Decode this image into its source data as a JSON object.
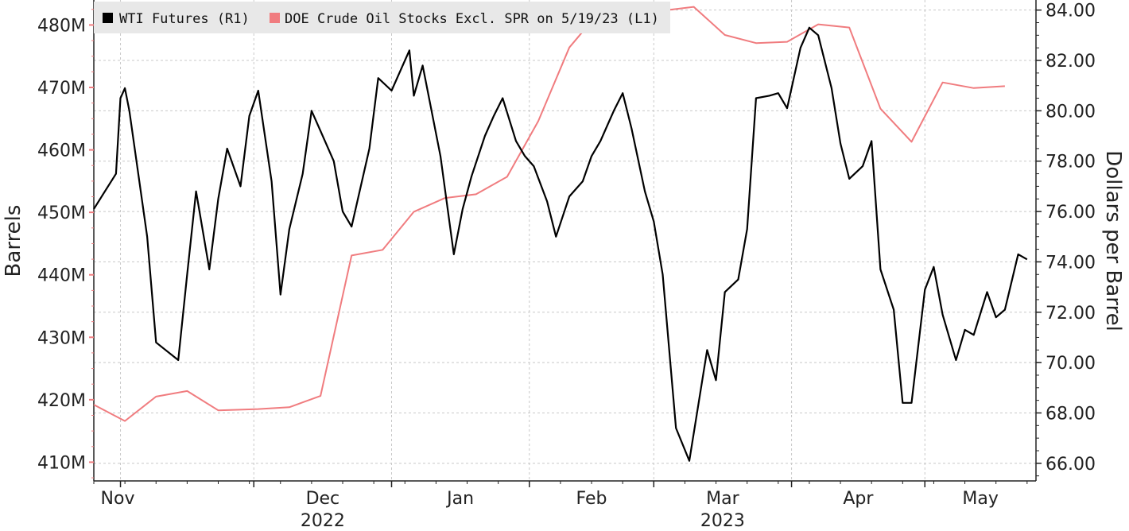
{
  "chart_data": {
    "type": "line",
    "legend_placement": "top-left",
    "grid": true,
    "xlabel": "",
    "ylabel_left": "Barrels",
    "ylabel_right": "Dollars per Barrel",
    "x_range": [
      "2022-10-26",
      "2023-05-26"
    ],
    "x_ticks": [
      {
        "date": "2022-11-01",
        "label": "Nov",
        "year": ""
      },
      {
        "date": "2022-12-01",
        "label": "Dec",
        "year": "2022"
      },
      {
        "date": "2023-01-01",
        "label": "Jan",
        "year": ""
      },
      {
        "date": "2023-02-01",
        "label": "Feb",
        "year": ""
      },
      {
        "date": "2023-03-01",
        "label": "Mar",
        "year": "2023"
      },
      {
        "date": "2023-04-01",
        "label": "Apr",
        "year": ""
      },
      {
        "date": "2023-05-01",
        "label": "May",
        "year": ""
      }
    ],
    "y_left": {
      "unit": "M barrels",
      "range": [
        407,
        484
      ],
      "ticks": [
        410,
        420,
        430,
        440,
        450,
        460,
        470,
        480
      ],
      "tick_labels": [
        "410M",
        "420M",
        "430M",
        "440M",
        "450M",
        "460M",
        "470M",
        "480M"
      ]
    },
    "y_right": {
      "unit": "USD per barrel",
      "range": [
        65.3,
        84.4
      ],
      "ticks": [
        66,
        68,
        70,
        72,
        74,
        76,
        78,
        80,
        82,
        84
      ],
      "tick_labels": [
        "66.00",
        "68.00",
        "70.00",
        "72.00",
        "74.00",
        "76.00",
        "78.00",
        "80.00",
        "82.00",
        "84.00"
      ]
    },
    "series": [
      {
        "name": "WTI Futures (R1)",
        "axis": "right",
        "color": "#000000",
        "x": [
          "2022-10-26",
          "2022-10-31",
          "2022-11-01",
          "2022-11-02",
          "2022-11-03",
          "2022-11-07",
          "2022-11-09",
          "2022-11-14",
          "2022-11-16",
          "2022-11-18",
          "2022-11-21",
          "2022-11-23",
          "2022-11-25",
          "2022-11-28",
          "2022-11-30",
          "2022-12-02",
          "2022-12-05",
          "2022-12-07",
          "2022-12-09",
          "2022-12-12",
          "2022-12-14",
          "2022-12-16",
          "2022-12-19",
          "2022-12-21",
          "2022-12-23",
          "2022-12-27",
          "2022-12-29",
          "2023-01-01",
          "2023-01-03",
          "2023-01-05",
          "2023-01-06",
          "2023-01-08",
          "2023-01-10",
          "2023-01-12",
          "2023-01-15",
          "2023-01-17",
          "2023-01-19",
          "2023-01-22",
          "2023-01-24",
          "2023-01-26",
          "2023-01-29",
          "2023-01-31",
          "2023-02-02",
          "2023-02-05",
          "2023-02-07",
          "2023-02-10",
          "2023-02-13",
          "2023-02-15",
          "2023-02-17",
          "2023-02-20",
          "2023-02-22",
          "2023-02-24",
          "2023-02-27",
          "2023-03-01",
          "2023-03-03",
          "2023-03-06",
          "2023-03-09",
          "2023-03-13",
          "2023-03-15",
          "2023-03-17",
          "2023-03-20",
          "2023-03-22",
          "2023-03-24",
          "2023-03-27",
          "2023-03-29",
          "2023-03-31",
          "2023-04-03",
          "2023-04-05",
          "2023-04-07",
          "2023-04-10",
          "2023-04-12",
          "2023-04-14",
          "2023-04-17",
          "2023-04-19",
          "2023-04-21",
          "2023-04-24",
          "2023-04-26",
          "2023-04-28",
          "2023-05-01",
          "2023-05-03",
          "2023-05-05",
          "2023-05-08",
          "2023-05-10",
          "2023-05-12",
          "2023-05-15",
          "2023-05-17",
          "2023-05-19",
          "2023-05-22",
          "2023-05-24"
        ],
        "values": [
          76.1,
          77.5,
          80.5,
          80.9,
          80.0,
          75.0,
          70.8,
          70.1,
          73.5,
          76.8,
          73.7,
          76.5,
          78.5,
          77.0,
          79.8,
          80.8,
          77.2,
          72.7,
          75.3,
          77.5,
          80.0,
          79.2,
          78.0,
          76.0,
          75.4,
          78.5,
          81.3,
          80.8,
          81.6,
          82.4,
          80.6,
          81.8,
          80.0,
          78.2,
          74.3,
          76.1,
          77.4,
          79.0,
          79.8,
          80.5,
          78.8,
          78.2,
          77.8,
          76.4,
          75.0,
          76.6,
          77.2,
          78.2,
          78.8,
          80.0,
          80.7,
          79.3,
          76.8,
          75.6,
          73.5,
          67.4,
          66.1,
          70.5,
          69.3,
          72.8,
          73.3,
          75.3,
          80.5,
          80.6,
          80.7,
          80.1,
          82.5,
          83.3,
          83.0,
          80.9,
          78.7,
          77.3,
          77.8,
          78.8,
          73.7,
          72.1,
          68.4,
          68.4,
          72.9,
          73.8,
          71.9,
          70.1,
          71.3,
          71.1,
          72.8,
          71.8,
          72.1,
          74.3,
          74.1
        ]
      },
      {
        "name": "DOE Crude Oil Stocks Excl. SPR on 5/19/23 (L1)",
        "axis": "left",
        "color": "#f07c7f",
        "x": [
          "2022-10-26",
          "2022-11-02",
          "2022-11-09",
          "2022-11-16",
          "2022-11-23",
          "2022-12-02",
          "2022-12-09",
          "2022-12-16",
          "2022-12-23",
          "2022-12-30",
          "2023-01-06",
          "2023-01-13",
          "2023-01-20",
          "2023-01-27",
          "2023-02-03",
          "2023-02-10",
          "2023-02-17",
          "2023-02-24",
          "2023-03-03",
          "2023-03-10",
          "2023-03-17",
          "2023-03-24",
          "2023-03-31",
          "2023-04-07",
          "2023-04-14",
          "2023-04-21",
          "2023-04-28",
          "2023-05-05",
          "2023-05-12",
          "2023-05-19"
        ],
        "values": [
          419.2,
          416.6,
          420.5,
          421.4,
          418.3,
          418.5,
          418.8,
          420.6,
          443.1,
          444.0,
          450.1,
          452.3,
          452.9,
          455.7,
          464.6,
          476.4,
          482.3,
          483.0,
          482.3,
          482.9,
          478.4,
          477.1,
          477.3,
          480.1,
          479.6,
          466.6,
          461.3,
          470.8,
          469.9,
          470.2
        ]
      }
    ]
  }
}
